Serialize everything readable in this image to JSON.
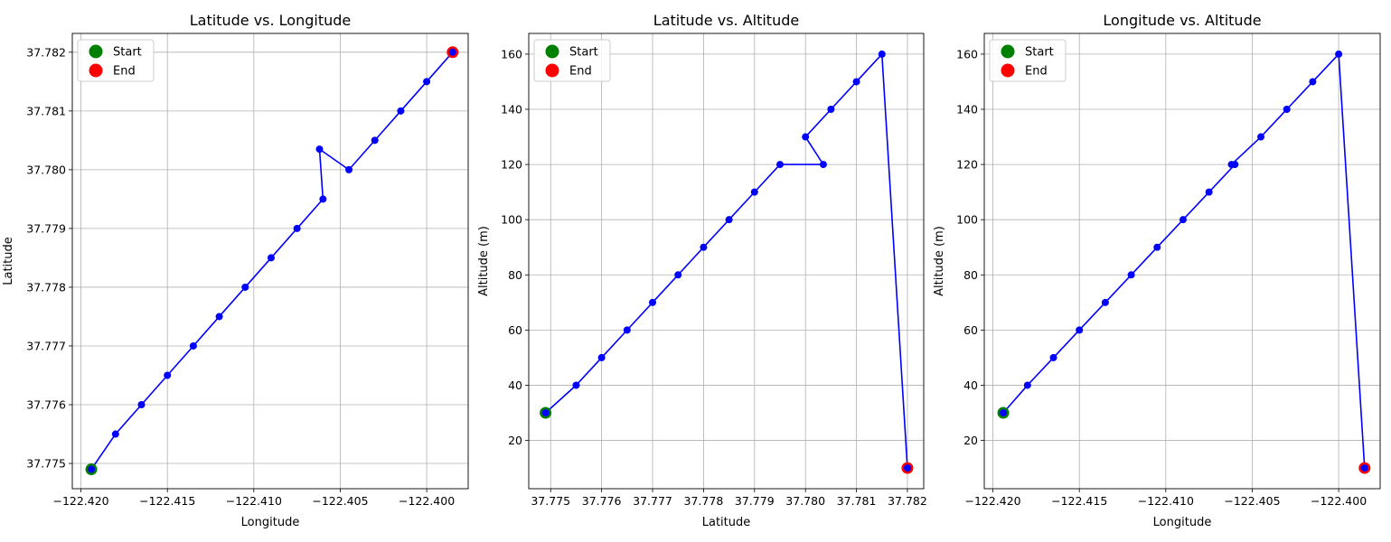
{
  "colors": {
    "line": "#0000ff",
    "marker": "#0000ff",
    "start": "#008000",
    "end": "#ff0000",
    "grid": "#b0b0b0"
  },
  "legend": {
    "start_label": "Start",
    "end_label": "End",
    "placement": "upper left"
  },
  "chart_data": [
    {
      "type": "line",
      "title": "Latitude vs. Longitude",
      "xlabel": "Longitude",
      "ylabel": "Latitude",
      "grid": true,
      "xlim": [
        -122.4205,
        -122.3976
      ],
      "ylim": [
        37.77457,
        37.78232
      ],
      "xticks": [
        -122.42,
        -122.415,
        -122.41,
        -122.405,
        -122.4
      ],
      "xtick_labels": [
        "−122.420",
        "−122.415",
        "−122.410",
        "−122.405",
        "−122.400"
      ],
      "yticks": [
        37.775,
        37.776,
        37.777,
        37.778,
        37.779,
        37.78,
        37.781,
        37.782
      ],
      "ytick_labels": [
        "37.775",
        "37.776",
        "37.777",
        "37.778",
        "37.779",
        "37.780",
        "37.781",
        "37.782"
      ],
      "x": [
        -122.4194,
        -122.418,
        -122.4165,
        -122.415,
        -122.4135,
        -122.412,
        -122.4105,
        -122.409,
        -122.4075,
        -122.406,
        -122.4062,
        -122.4045,
        -122.403,
        -122.4015,
        -122.4,
        -122.3985
      ],
      "y": [
        37.7749,
        37.7755,
        37.776,
        37.7765,
        37.777,
        37.7775,
        37.778,
        37.7785,
        37.779,
        37.7795,
        37.78035,
        37.78,
        37.7805,
        37.781,
        37.7815,
        37.782
      ],
      "start": [
        -122.4194,
        37.7749
      ],
      "end": [
        -122.3985,
        37.782
      ]
    },
    {
      "type": "line",
      "title": "Latitude vs. Altitude",
      "xlabel": "Latitude",
      "ylabel": "Altitude (m)",
      "grid": true,
      "xlim": [
        37.77457,
        37.78232
      ],
      "ylim": [
        2.5,
        167.5
      ],
      "xticks": [
        37.775,
        37.776,
        37.777,
        37.778,
        37.779,
        37.78,
        37.781,
        37.782
      ],
      "xtick_labels": [
        "37.775",
        "37.776",
        "37.777",
        "37.778",
        "37.779",
        "37.780",
        "37.781",
        "37.782"
      ],
      "yticks": [
        20,
        40,
        60,
        80,
        100,
        120,
        140,
        160
      ],
      "ytick_labels": [
        "20",
        "40",
        "60",
        "80",
        "100",
        "120",
        "140",
        "160"
      ],
      "x": [
        37.7749,
        37.7755,
        37.776,
        37.7765,
        37.777,
        37.7775,
        37.778,
        37.7785,
        37.779,
        37.7795,
        37.78035,
        37.78,
        37.7805,
        37.781,
        37.7815,
        37.782
      ],
      "y": [
        30,
        40,
        50,
        60,
        70,
        80,
        90,
        100,
        110,
        120,
        120,
        130,
        140,
        150,
        160,
        10
      ],
      "start": [
        37.7749,
        30
      ],
      "end": [
        37.782,
        10
      ]
    },
    {
      "type": "line",
      "title": "Longitude vs. Altitude",
      "xlabel": "Longitude",
      "ylabel": "Altitude (m)",
      "grid": true,
      "xlim": [
        -122.4205,
        -122.3976
      ],
      "ylim": [
        2.5,
        167.5
      ],
      "xticks": [
        -122.42,
        -122.415,
        -122.41,
        -122.405,
        -122.4
      ],
      "xtick_labels": [
        "−122.420",
        "−122.415",
        "−122.410",
        "−122.405",
        "−122.400"
      ],
      "yticks": [
        20,
        40,
        60,
        80,
        100,
        120,
        140,
        160
      ],
      "ytick_labels": [
        "20",
        "40",
        "60",
        "80",
        "100",
        "120",
        "140",
        "160"
      ],
      "x": [
        -122.4194,
        -122.418,
        -122.4165,
        -122.415,
        -122.4135,
        -122.412,
        -122.4105,
        -122.409,
        -122.4075,
        -122.406,
        -122.4062,
        -122.4045,
        -122.403,
        -122.4015,
        -122.4,
        -122.3985
      ],
      "y": [
        30,
        40,
        50,
        60,
        70,
        80,
        90,
        100,
        110,
        120,
        120,
        130,
        140,
        150,
        160,
        10
      ],
      "start": [
        -122.4194,
        30
      ],
      "end": [
        -122.3985,
        10
      ]
    }
  ]
}
